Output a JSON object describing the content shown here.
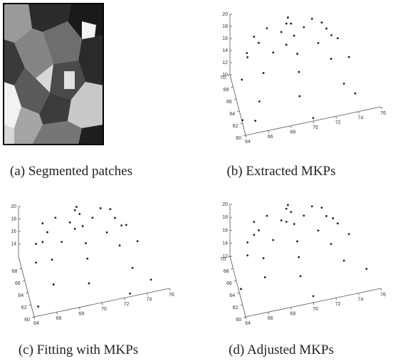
{
  "panels": [
    {
      "caption": "(a) Segmented patches"
    },
    {
      "caption": "(b) Extracted MKPs",
      "type": "scatter3d",
      "xlim": [
        64,
        76
      ],
      "ylim": [
        60,
        70
      ],
      "zlim": [
        10,
        20
      ],
      "xticks": [
        64,
        66,
        68,
        70,
        72,
        74,
        76
      ],
      "yticks": [
        60,
        62,
        64,
        66,
        68,
        70
      ],
      "zticks": [
        10,
        12,
        14,
        16,
        18,
        20
      ],
      "x": [
        68,
        69,
        70,
        69,
        66,
        67,
        69,
        71,
        72,
        71,
        69,
        67,
        65,
        66,
        69,
        72,
        73,
        72,
        69,
        66,
        64.5,
        65.5,
        69,
        73,
        74,
        73,
        69,
        65.5,
        64,
        65,
        74,
        70
      ],
      "y": [
        66,
        67,
        66,
        65,
        66,
        68,
        69,
        68,
        66,
        64,
        63,
        64,
        66,
        69,
        70,
        69,
        66,
        63,
        62,
        63,
        66,
        70,
        70,
        70,
        66,
        62,
        61.5,
        62,
        62,
        61,
        62,
        60
      ],
      "z": [
        19.5,
        19.5,
        19.5,
        19.5,
        18.5,
        18.5,
        18.5,
        18.5,
        18.5,
        18.5,
        18.5,
        18.5,
        16.5,
        16.5,
        16.5,
        16.5,
        16.5,
        16.5,
        16.5,
        16.5,
        13,
        13,
        13,
        13,
        13,
        13,
        13,
        13,
        10.5,
        11,
        11,
        10.5
      ]
    },
    {
      "caption": "(c) Fitting with MKPs",
      "type": "scatter3d",
      "xlim": [
        64,
        76
      ],
      "ylim": [
        60,
        70
      ],
      "zlim": [
        12,
        20
      ],
      "xticks": [
        64,
        66,
        68,
        70,
        72,
        74,
        76
      ],
      "yticks": [
        60,
        62,
        64,
        66,
        68
      ],
      "zticks": [
        14,
        16,
        18,
        20
      ],
      "x": [
        68,
        69,
        70,
        69,
        66,
        67,
        69,
        71,
        72,
        71,
        69,
        67,
        65,
        66,
        69,
        72,
        73,
        72,
        69,
        66,
        65,
        66,
        69,
        73,
        74,
        73,
        69,
        66,
        64.5,
        74.5,
        72.5
      ],
      "y": [
        66,
        67,
        66,
        65,
        66,
        68,
        69,
        68,
        66,
        64,
        63,
        64,
        66,
        69,
        70,
        69,
        66,
        63,
        62,
        63,
        66,
        69,
        70,
        69,
        66,
        62,
        61,
        62,
        61,
        61,
        60
      ],
      "z": [
        19.8,
        19.8,
        19.8,
        19.8,
        19,
        19,
        19,
        19,
        19,
        19,
        19,
        19,
        17.5,
        17.5,
        17.5,
        17.5,
        17.5,
        17.5,
        17.5,
        17.5,
        14.5,
        14.5,
        14.5,
        14.5,
        14.5,
        14.5,
        14.5,
        14.5,
        12.5,
        13,
        12.5
      ]
    },
    {
      "caption": "(d) Adjusted MKPs",
      "type": "scatter3d",
      "xlim": [
        64,
        76
      ],
      "ylim": [
        60,
        70
      ],
      "zlim": [
        12,
        20
      ],
      "xticks": [
        64,
        66,
        68,
        70,
        72,
        74,
        76
      ],
      "yticks": [
        60,
        62,
        64,
        66,
        68,
        70
      ],
      "zticks": [
        12,
        14,
        16,
        18,
        20
      ],
      "x": [
        68,
        69,
        70,
        69,
        66,
        67,
        69,
        71,
        72,
        71,
        69,
        67,
        65,
        66,
        69,
        72,
        73,
        72,
        69,
        66,
        65,
        66,
        69,
        73,
        74,
        73,
        69,
        66,
        64,
        75,
        70
      ],
      "y": [
        66,
        67,
        66,
        65,
        66,
        68,
        69,
        68,
        66,
        64,
        63,
        64,
        66,
        69,
        70,
        69,
        66,
        63,
        62,
        63,
        66,
        69,
        70,
        69,
        66,
        62,
        61,
        62,
        63,
        62,
        60
      ],
      "z": [
        19.8,
        19.8,
        19.8,
        19.8,
        19,
        19,
        19,
        19,
        19,
        19,
        19,
        19,
        17.5,
        17.5,
        17.5,
        17.5,
        17.5,
        17.5,
        17.5,
        17.5,
        15.5,
        15.5,
        15.5,
        15.5,
        15.5,
        15.5,
        15.5,
        15.5,
        13.5,
        13.5,
        13
      ]
    }
  ]
}
